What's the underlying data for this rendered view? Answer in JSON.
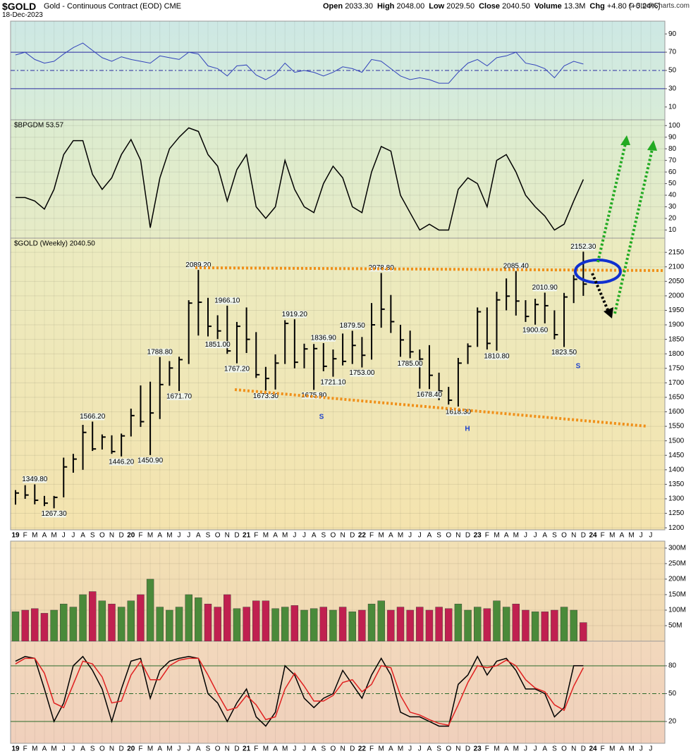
{
  "header": {
    "symbol": "$GOLD",
    "name": "Gold - Continuous Contract (EOD)",
    "exchange": "CME",
    "date": "18-Dec-2023",
    "stats": [
      {
        "label": "Open",
        "value": "2033.30"
      },
      {
        "label": "High",
        "value": "2048.00"
      },
      {
        "label": "Low",
        "value": "2029.50"
      },
      {
        "label": "Close",
        "value": "2040.50"
      },
      {
        "label": "Volume",
        "value": "13.3M"
      },
      {
        "label": "Chg",
        "value": "+4.80 (+0.24%)"
      }
    ],
    "credit": "© StockCharts.com"
  },
  "chart_data": [
    {
      "type": "line",
      "ylim": [
        -4,
        104
      ],
      "yticks": [
        10,
        30,
        50,
        70,
        90
      ],
      "ref_lines": [
        30,
        50,
        70
      ],
      "ref_color": "#2a2aa0",
      "series": [
        {
          "color": "#3344bb",
          "values": [
            67,
            70,
            62,
            58,
            60,
            68,
            75,
            80,
            72,
            64,
            60,
            65,
            62,
            60,
            58,
            66,
            64,
            62,
            70,
            68,
            55,
            52,
            44,
            55,
            56,
            45,
            40,
            46,
            58,
            48,
            50,
            48,
            44,
            48,
            54,
            52,
            48,
            62,
            60,
            52,
            44,
            40,
            42,
            40,
            36,
            36,
            48,
            58,
            62,
            55,
            64,
            66,
            70,
            58,
            56,
            52,
            42,
            55,
            60,
            57,
            null,
            null,
            null,
            null,
            null,
            null,
            null
          ]
        }
      ]
    },
    {
      "type": "line",
      "title": "$BPGDM 53.57",
      "ylim": [
        3,
        105
      ],
      "yticks": [
        10,
        20,
        30,
        40,
        50,
        60,
        70,
        80,
        90,
        100
      ],
      "grid": true,
      "series": [
        {
          "color": "#000000",
          "values": [
            38,
            38,
            35,
            28,
            45,
            75,
            87,
            87,
            58,
            45,
            55,
            75,
            88,
            70,
            12,
            55,
            80,
            90,
            98,
            95,
            75,
            65,
            35,
            62,
            75,
            30,
            20,
            30,
            70,
            45,
            30,
            25,
            50,
            65,
            55,
            30,
            25,
            60,
            82,
            78,
            40,
            25,
            10,
            15,
            10,
            10,
            45,
            55,
            50,
            30,
            70,
            75,
            60,
            40,
            30,
            22,
            10,
            15,
            35,
            53.57,
            null,
            null,
            null,
            null,
            null,
            null,
            null
          ]
        }
      ]
    },
    {
      "type": "ohlc",
      "title": "$GOLD (Weekly) 2040.50",
      "ylim": [
        1193,
        2199
      ],
      "yticks": [
        1200,
        1250,
        1300,
        1350,
        1400,
        1450,
        1500,
        1550,
        1600,
        1650,
        1700,
        1750,
        1800,
        1850,
        1900,
        1950,
        2000,
        2050,
        2100,
        2150
      ],
      "grid": true,
      "color": "#000000",
      "categories": [
        "19",
        "F",
        "M",
        "A",
        "M",
        "J",
        "J",
        "A",
        "S",
        "O",
        "N",
        "D",
        "20",
        "F",
        "M",
        "A",
        "M",
        "J",
        "J",
        "A",
        "S",
        "O",
        "N",
        "D",
        "21",
        "F",
        "M",
        "A",
        "M",
        "J",
        "J",
        "A",
        "S",
        "O",
        "N",
        "D",
        "22",
        "F",
        "M",
        "A",
        "M",
        "J",
        "J",
        "A",
        "S",
        "O",
        "N",
        "D",
        "23",
        "F",
        "M",
        "A",
        "M",
        "J",
        "J",
        "A",
        "S",
        "O",
        "N",
        "D",
        "24",
        "F",
        "M",
        "A",
        "M",
        "J",
        "J"
      ],
      "highs": [
        1330,
        1347,
        1349.8,
        1310,
        1310,
        1442,
        1455,
        1555,
        1566.2,
        1522,
        1519,
        1525,
        1611,
        1691,
        1704,
        1788.8,
        1775,
        1790,
        1985,
        2089.2,
        1993,
        1933,
        1966.1,
        1910,
        1960,
        1875,
        1755,
        1798,
        1916,
        1919.2,
        1835,
        1834,
        1836.9,
        1815,
        1870,
        1879.5,
        1858,
        1975,
        2078.8,
        2003,
        1900,
        1880,
        1815,
        1830,
        1735,
        1686,
        1786,
        1836,
        1960,
        1960,
        2014,
        2060,
        2085.4,
        1985,
        1990,
        2010.9,
        1950,
        2010,
        2072,
        2152.3,
        null,
        null,
        null,
        null,
        null,
        null,
        null
      ],
      "lows": [
        1280,
        1300,
        1281,
        1275,
        1267.3,
        1305,
        1390,
        1400,
        1465,
        1470,
        1455,
        1446.2,
        1515,
        1548,
        1450.9,
        1575,
        1690,
        1671.7,
        1765,
        1863,
        1860,
        1851,
        1800,
        1767.2,
        1803,
        1717,
        1673.3,
        1677,
        1765,
        1750,
        1750,
        1675.8,
        1740,
        1721.1,
        1760,
        1765,
        1753,
        1780,
        1890,
        1872,
        1790,
        1785,
        1680,
        1678.4,
        1640,
        1625,
        1618.3,
        1765,
        1824,
        1815,
        1810.8,
        1950,
        1932,
        1910,
        1900.6,
        1905,
        1850,
        1823.5,
        1975,
        2000,
        null,
        null,
        null,
        null,
        null,
        null,
        null
      ],
      "closes": [
        1320,
        1313,
        1295,
        1285,
        1305,
        1410,
        1437,
        1529,
        1472,
        1513,
        1463,
        1517,
        1587,
        1566,
        1596,
        1694,
        1751,
        1780,
        1975,
        1978,
        1895,
        1879,
        1810,
        1895,
        1850,
        1728,
        1715,
        1768,
        1905,
        1771,
        1817,
        1818,
        1757,
        1783,
        1774,
        1829,
        1795,
        1900,
        1954,
        1911,
        1848,
        1807,
        1782,
        1726,
        1672,
        1640,
        1768,
        1826,
        1945,
        1836,
        1986,
        1999,
        1982,
        1929,
        1970,
        1966,
        1866,
        1996,
        2057,
        2040.5,
        null,
        null,
        null,
        null,
        null,
        null,
        null
      ],
      "point_labels": {
        "values": [
          null,
          null,
          1349.8,
          null,
          1267.3,
          null,
          null,
          null,
          1566.2,
          null,
          null,
          1446.2,
          null,
          null,
          1450.9,
          1788.8,
          null,
          1671.7,
          null,
          2089.2,
          null,
          1851,
          1966.1,
          1767.2,
          null,
          null,
          1673.3,
          null,
          null,
          1919.2,
          null,
          1675.8,
          1836.9,
          1721.1,
          null,
          1879.5,
          1753,
          null,
          2078.8,
          null,
          null,
          1785,
          null,
          1678.4,
          null,
          null,
          1618.3,
          null,
          null,
          null,
          1810.8,
          null,
          2085.4,
          null,
          1900.6,
          2010.9,
          null,
          1823.5,
          null,
          2152.3,
          null,
          null,
          null,
          null,
          null,
          null,
          null
        ],
        "value_labels": [
          null,
          null,
          "1349.80",
          null,
          "1267.30",
          null,
          null,
          null,
          "1566.20",
          null,
          null,
          "1446.20",
          null,
          null,
          "1450.90",
          "1788.80",
          null,
          "1671.70",
          null,
          "2089.20",
          null,
          "1851.00",
          "1966.10",
          "1767.20",
          null,
          null,
          "1673.30",
          null,
          null,
          "1919.20",
          null,
          "1675.80",
          "1836.90",
          "1721.10",
          null,
          "1879.50",
          "1753.00",
          null,
          "2078.80",
          null,
          null,
          "1785.00",
          null,
          "1678.40",
          null,
          null,
          "1618.30",
          null,
          null,
          null,
          "1810.80",
          null,
          "2085.40",
          null,
          "1900.60",
          "2010.90",
          null,
          "1823.50",
          null,
          "2152.30",
          null,
          null,
          null,
          null,
          null,
          null,
          null
        ]
      },
      "pattern_labels": [
        "S",
        "H",
        "S"
      ]
    },
    {
      "type": "bar",
      "ylim": [
        0,
        318
      ],
      "yticks": [
        {
          "value": 50,
          "label": "50M"
        },
        {
          "value": 100,
          "label": "100M"
        },
        {
          "value": 150,
          "label": "150M"
        },
        {
          "value": 200,
          "label": "200M"
        },
        {
          "value": 250,
          "label": "250M"
        },
        {
          "value": 300,
          "label": "300M"
        }
      ],
      "grid": true,
      "up_color": "#4a8a3a",
      "down_color": "#c02050",
      "values": [
        95,
        100,
        105,
        90,
        100,
        120,
        110,
        150,
        160,
        130,
        120,
        110,
        130,
        150,
        200,
        110,
        100,
        110,
        150,
        140,
        120,
        110,
        150,
        105,
        110,
        130,
        130,
        105,
        110,
        115,
        100,
        105,
        110,
        100,
        110,
        95,
        100,
        120,
        130,
        100,
        110,
        100,
        110,
        100,
        110,
        105,
        120,
        100,
        110,
        105,
        130,
        110,
        120,
        100,
        95,
        95,
        100,
        110,
        100,
        60,
        null,
        null,
        null,
        null,
        null,
        null,
        null
      ]
    },
    {
      "type": "line",
      "ylim": [
        -3.5,
        105
      ],
      "yticks": [
        20,
        50,
        80
      ],
      "ref_lines": [
        20,
        50,
        80
      ],
      "ref_color": "#2a6a2a",
      "categories": [
        "19",
        "F",
        "M",
        "A",
        "M",
        "J",
        "J",
        "A",
        "S",
        "O",
        "N",
        "D",
        "20",
        "F",
        "M",
        "A",
        "M",
        "J",
        "J",
        "A",
        "S",
        "O",
        "N",
        "D",
        "21",
        "F",
        "M",
        "A",
        "M",
        "J",
        "J",
        "A",
        "S",
        "O",
        "N",
        "D",
        "22",
        "F",
        "M",
        "A",
        "M",
        "J",
        "J",
        "A",
        "S",
        "O",
        "N",
        "D",
        "23",
        "F",
        "M",
        "A",
        "M",
        "J",
        "J",
        "A",
        "S",
        "O",
        "N",
        "D",
        "24",
        "F",
        "M",
        "A",
        "M",
        "J",
        "J"
      ],
      "series": [
        {
          "color": "#000000",
          "values": [
            85,
            90,
            88,
            55,
            20,
            40,
            80,
            90,
            75,
            55,
            20,
            55,
            85,
            88,
            45,
            75,
            85,
            88,
            90,
            88,
            50,
            40,
            20,
            40,
            55,
            25,
            15,
            30,
            80,
            70,
            45,
            35,
            45,
            50,
            75,
            60,
            45,
            70,
            88,
            70,
            30,
            25,
            25,
            20,
            15,
            15,
            60,
            70,
            90,
            70,
            85,
            88,
            75,
            55,
            55,
            50,
            25,
            35,
            80,
            80,
            null,
            null,
            null,
            null,
            null,
            null,
            null
          ]
        },
        {
          "color": "#e02020",
          "values": [
            82,
            88,
            88,
            72,
            40,
            35,
            60,
            85,
            82,
            68,
            40,
            42,
            70,
            85,
            65,
            65,
            80,
            86,
            88,
            88,
            70,
            50,
            32,
            35,
            48,
            38,
            22,
            25,
            55,
            72,
            58,
            42,
            42,
            48,
            62,
            65,
            52,
            60,
            80,
            78,
            48,
            30,
            27,
            22,
            18,
            16,
            38,
            62,
            80,
            78,
            80,
            86,
            80,
            65,
            56,
            52,
            38,
            32,
            58,
            78,
            null,
            null,
            null,
            null,
            null,
            null,
            null
          ]
        }
      ]
    }
  ]
}
